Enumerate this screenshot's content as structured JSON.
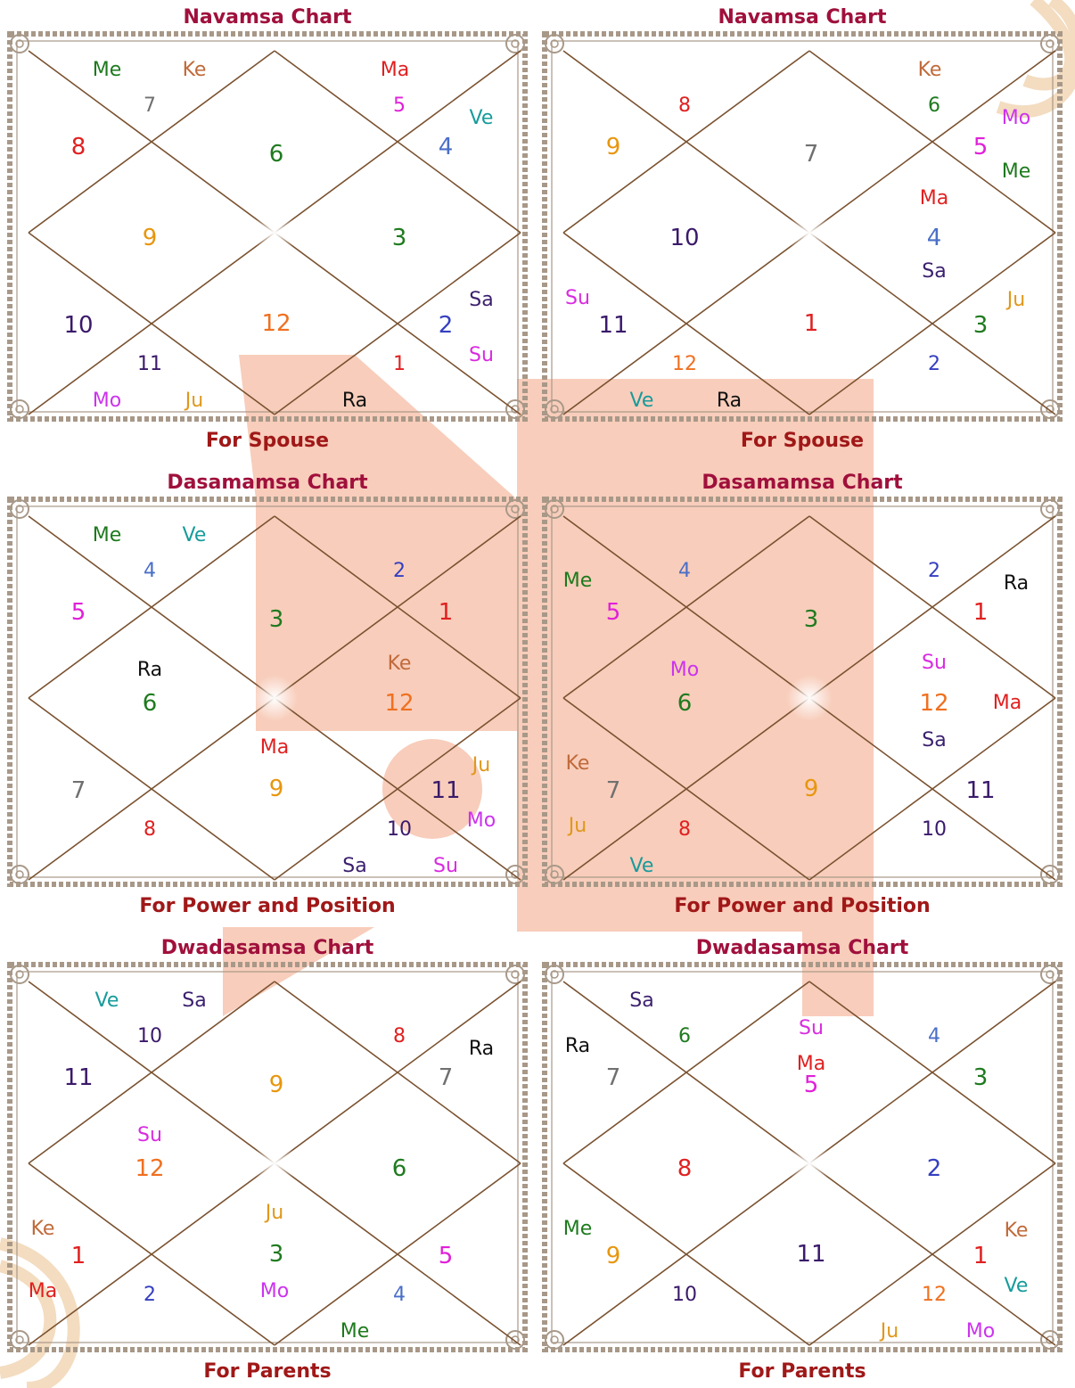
{
  "colors": {
    "title": "#a0103c",
    "subtitle": "#a01818",
    "line": "#7a5230",
    "frame": "#a89888",
    "watermark": "#f8cdbb",
    "Me": "#1d7a1d",
    "Ke": "#c06a3a",
    "Ma": "#e02020",
    "Ve": "#179b9b",
    "Mo": "#cc33ee",
    "Ju": "#e0981b",
    "Sa": "#3a1f6e",
    "Su": "#d92be0",
    "Ra": "#111111",
    "n1": "#e02020",
    "n2": "#3540c0",
    "n3": "#1f7a1f",
    "n4": "#4a6fc8",
    "n5": "#e020d8",
    "n6": "#1f7a1f",
    "n7": "#707070",
    "n8": "#e02020",
    "n9": "#e8960e",
    "n10": "#3a1a6a",
    "n11": "#3a1a6a",
    "n12": "#f07020"
  },
  "panels": [
    {
      "title": "Navamsa Chart",
      "subtitle": "For Spouse",
      "houses": [
        {
          "n": "6",
          "planets": []
        },
        {
          "n": "7",
          "planets": [
            "Me",
            "Ke"
          ]
        },
        {
          "n": "8",
          "planets": []
        },
        {
          "n": "9",
          "planets": []
        },
        {
          "n": "10",
          "planets": []
        },
        {
          "n": "11",
          "planets": [
            "Mo",
            "Ju"
          ]
        },
        {
          "n": "12",
          "planets": []
        },
        {
          "n": "1",
          "planets": [
            "Ra"
          ]
        },
        {
          "n": "2",
          "planets": [
            "Sa",
            "Su"
          ]
        },
        {
          "n": "3",
          "planets": []
        },
        {
          "n": "4",
          "planets": [
            "Ve"
          ]
        },
        {
          "n": "5",
          "planets": [
            "Ma"
          ]
        }
      ]
    },
    {
      "title": "Navamsa Chart",
      "subtitle": "For Spouse",
      "houses": [
        {
          "n": "7",
          "planets": []
        },
        {
          "n": "8",
          "planets": []
        },
        {
          "n": "9",
          "planets": []
        },
        {
          "n": "10",
          "planets": []
        },
        {
          "n": "11",
          "planets": [
            "Su"
          ]
        },
        {
          "n": "12",
          "planets": [
            "Ve",
            "Ra"
          ]
        },
        {
          "n": "1",
          "planets": []
        },
        {
          "n": "2",
          "planets": []
        },
        {
          "n": "3",
          "planets": [
            "Ju"
          ]
        },
        {
          "n": "4",
          "planets": [
            "Ma",
            "Sa"
          ]
        },
        {
          "n": "5",
          "planets": [
            "Mo",
            "Me"
          ]
        },
        {
          "n": "6",
          "planets": [
            "Ke"
          ]
        }
      ]
    },
    {
      "title": "Dasamamsa Chart",
      "subtitle": "For Power and Position",
      "houses": [
        {
          "n": "3",
          "planets": []
        },
        {
          "n": "4",
          "planets": [
            "Me",
            "Ve"
          ]
        },
        {
          "n": "5",
          "planets": []
        },
        {
          "n": "6",
          "planets": [
            "Ra"
          ]
        },
        {
          "n": "7",
          "planets": []
        },
        {
          "n": "8",
          "planets": []
        },
        {
          "n": "9",
          "planets": [
            "Ma"
          ]
        },
        {
          "n": "10",
          "planets": [
            "Sa",
            "Su"
          ]
        },
        {
          "n": "11",
          "planets": [
            "Ju",
            "Mo"
          ]
        },
        {
          "n": "12",
          "planets": [
            "Ke"
          ]
        },
        {
          "n": "1",
          "planets": []
        },
        {
          "n": "2",
          "planets": []
        }
      ]
    },
    {
      "title": "Dasamamsa Chart",
      "subtitle": "For Power and Position",
      "houses": [
        {
          "n": "3",
          "planets": []
        },
        {
          "n": "4",
          "planets": []
        },
        {
          "n": "5",
          "planets": [
            "Me"
          ]
        },
        {
          "n": "6",
          "planets": [
            "Mo"
          ]
        },
        {
          "n": "7",
          "planets": [
            "Ke",
            "Ju"
          ]
        },
        {
          "n": "8",
          "planets": [
            "Ve"
          ]
        },
        {
          "n": "9",
          "planets": []
        },
        {
          "n": "10",
          "planets": []
        },
        {
          "n": "11",
          "planets": []
        },
        {
          "n": "12",
          "planets": [
            "Su",
            "Ma",
            "Sa"
          ]
        },
        {
          "n": "1",
          "planets": [
            "Ra"
          ]
        },
        {
          "n": "2",
          "planets": []
        }
      ]
    },
    {
      "title": "Dwadasamsa Chart",
      "subtitle": "For Parents",
      "houses": [
        {
          "n": "9",
          "planets": []
        },
        {
          "n": "10",
          "planets": [
            "Ve",
            "Sa"
          ]
        },
        {
          "n": "11",
          "planets": []
        },
        {
          "n": "12",
          "planets": [
            "Su"
          ]
        },
        {
          "n": "1",
          "planets": [
            "Ke",
            "Ma"
          ]
        },
        {
          "n": "2",
          "planets": []
        },
        {
          "n": "3",
          "planets": [
            "Ju",
            "Mo"
          ]
        },
        {
          "n": "4",
          "planets": [
            "Me"
          ]
        },
        {
          "n": "5",
          "planets": []
        },
        {
          "n": "6",
          "planets": []
        },
        {
          "n": "7",
          "planets": [
            "Ra"
          ]
        },
        {
          "n": "8",
          "planets": []
        }
      ]
    },
    {
      "title": "Dwadasamsa Chart",
      "subtitle": "For Parents",
      "houses": [
        {
          "n": "5",
          "planets": [
            "Su",
            "Ma"
          ]
        },
        {
          "n": "6",
          "planets": [
            "Sa"
          ]
        },
        {
          "n": "7",
          "planets": [
            "Ra"
          ]
        },
        {
          "n": "8",
          "planets": []
        },
        {
          "n": "9",
          "planets": [
            "Me"
          ]
        },
        {
          "n": "10",
          "planets": []
        },
        {
          "n": "11",
          "planets": []
        },
        {
          "n": "12",
          "planets": [
            "Ju",
            "Mo"
          ]
        },
        {
          "n": "1",
          "planets": [
            "Ke",
            "Ve"
          ]
        },
        {
          "n": "2",
          "planets": []
        },
        {
          "n": "3",
          "planets": []
        },
        {
          "n": "4",
          "planets": []
        }
      ]
    }
  ]
}
